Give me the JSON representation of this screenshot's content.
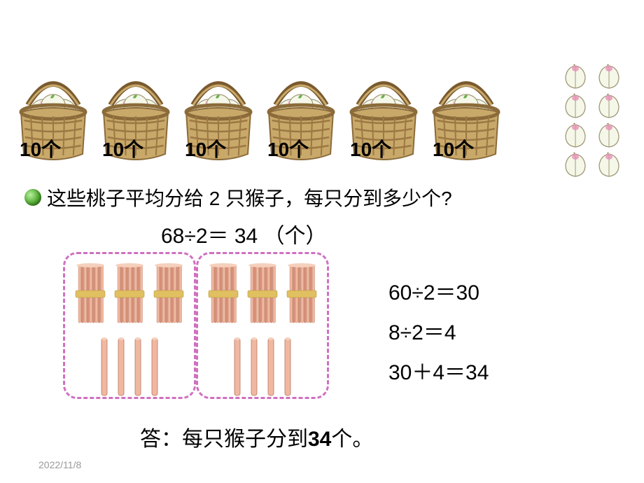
{
  "baskets": {
    "count": 6,
    "label": "10个",
    "colors": {
      "rim": "#8b6b3a",
      "weave_light": "#c9a96a",
      "weave_dark": "#9c7843",
      "handle": "#7a5a2e",
      "peach_body": "#f5f8e8",
      "peach_tip": "#e890b8",
      "leaf": "#6ab04a"
    }
  },
  "loose_peaches": {
    "count": 8,
    "colors": {
      "body": "#f5f8e8",
      "tip": "#e890b8",
      "outline": "#a09878"
    }
  },
  "question": "这些桃子平均分给 2 只猴子，每只分到多少个?",
  "main_equation": "68÷2＝ 34 （个）",
  "sticks": {
    "groups": 2,
    "bundles_per_group": 3,
    "singles_per_group": 4,
    "colors": {
      "border": "#d070c0",
      "stick_light": "#f0b8a0",
      "stick_dark": "#d89078",
      "band": "#e0c060"
    }
  },
  "side_equations": [
    "60÷2＝30",
    "8÷2＝4",
    "30＋4＝34"
  ],
  "answer_prefix": "答：每只猴子分到",
  "answer_value": "34",
  "answer_suffix": "个。",
  "date": "2022/11/8",
  "fontsize_main": 28,
  "fontsize_eq": 30,
  "background": "#ffffff"
}
